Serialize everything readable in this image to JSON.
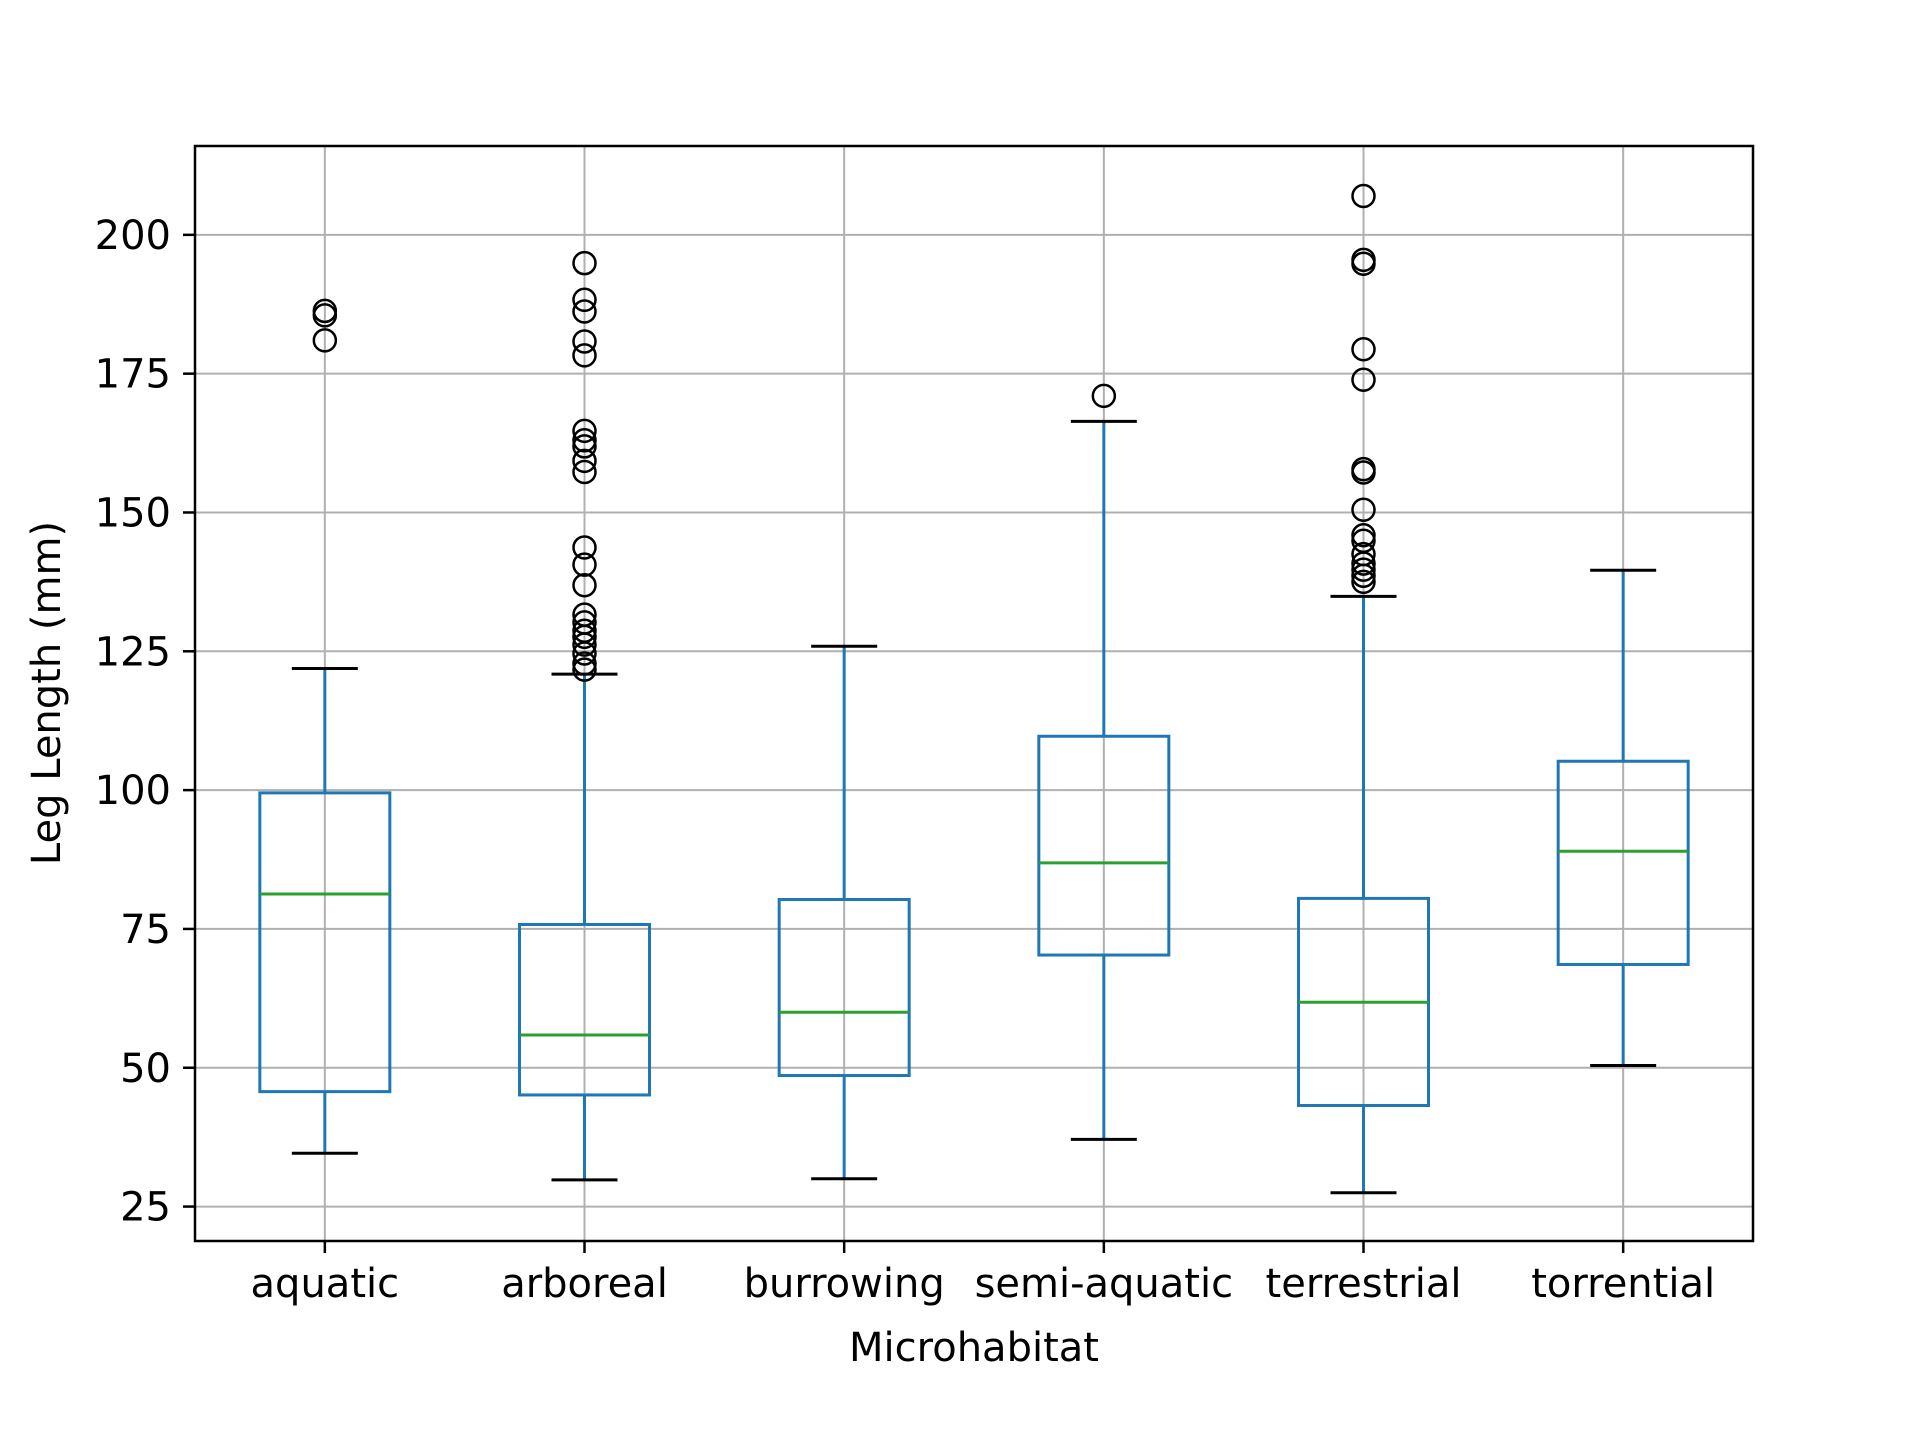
{
  "chart_data": {
    "type": "box",
    "xlabel": "Microhabitat",
    "ylabel": "Leg Length (mm)",
    "ylim": [
      18.8,
      216
    ],
    "yticks": [
      25,
      50,
      75,
      100,
      125,
      150,
      175,
      200
    ],
    "grid": true,
    "categories": [
      "aquatic",
      "arboreal",
      "burrowing",
      "semi-aquatic",
      "terrestrial",
      "torrential"
    ],
    "boxes": [
      {
        "category": "aquatic",
        "whisker_low": 34.6,
        "q1": 45.7,
        "median": 81.3,
        "q3": 99.5,
        "whisker_high": 121.9,
        "outliers": [
          181.0,
          185.5,
          186.3
        ]
      },
      {
        "category": "arboreal",
        "whisker_low": 29.8,
        "q1": 45.1,
        "median": 55.9,
        "q3": 75.8,
        "whisker_high": 120.9,
        "outliers": [
          121.7,
          122.8,
          124.6,
          126.2,
          127.6,
          128.7,
          130.2,
          131.6,
          136.9,
          140.6,
          143.7,
          157.3,
          159.3,
          161.9,
          163.0,
          164.7,
          178.3,
          180.8,
          186.2,
          188.3,
          194.9
        ]
      },
      {
        "category": "burrowing",
        "whisker_low": 30.0,
        "q1": 48.6,
        "median": 60.0,
        "q3": 80.3,
        "whisker_high": 125.9,
        "outliers": []
      },
      {
        "category": "semi-aquatic",
        "whisker_low": 37.1,
        "q1": 70.3,
        "median": 86.9,
        "q3": 109.7,
        "whisker_high": 166.4,
        "outliers": [
          171.0
        ]
      },
      {
        "category": "terrestrial",
        "whisker_low": 27.5,
        "q1": 43.2,
        "median": 61.8,
        "q3": 80.5,
        "whisker_high": 134.9,
        "outliers": [
          137.5,
          138.6,
          139.7,
          140.8,
          142.5,
          144.9,
          145.9,
          150.5,
          157.2,
          157.8,
          173.9,
          179.4,
          194.8,
          195.5,
          207.0
        ]
      },
      {
        "category": "torrential",
        "whisker_low": 50.4,
        "q1": 68.6,
        "median": 89.0,
        "q3": 105.2,
        "whisker_high": 139.6,
        "outliers": []
      }
    ],
    "colors": {
      "box": "#1f77b4",
      "median": "#2ca02c",
      "whisker_cap": "#000000",
      "outlier": "#000000",
      "grid": "#b0b0b0"
    }
  }
}
